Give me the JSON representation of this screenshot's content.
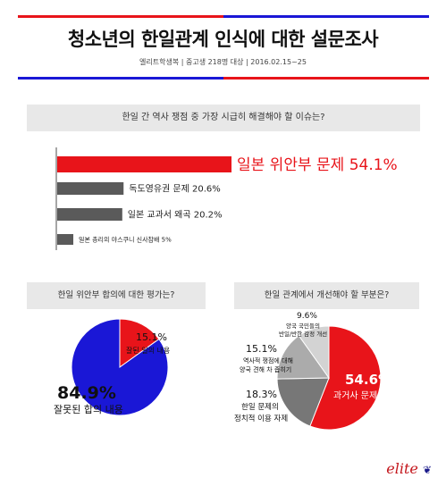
{
  "header": {
    "title": "청소년의 한일관계 인식에 대한 설문조사",
    "subtitle": "엘리트학생복 | 중고생 218명 대상 | 2016.02.15~25"
  },
  "colors": {
    "red": "#e8141a",
    "blue": "#1a17d6",
    "gray": "#5a5a5a",
    "lightgray": "#d8d8d8",
    "qbg": "#e8e8e8"
  },
  "chart_data": [
    {
      "type": "bar",
      "title": "한일 간 역사 쟁점 중 가장 시급히 해결해야 할 이슈는?",
      "categories": [
        "일본 위안부 문제",
        "독도영유권 문제",
        "일본 교과서 왜곡",
        "일본 총리의 야스쿠니 신사참배"
      ],
      "values": [
        54.1,
        20.6,
        20.2,
        5
      ],
      "labels": [
        "일본 위안부 문제 54.1%",
        "독도영유권 문제 20.6%",
        "일본 교과서 왜곡 20.2%",
        "일본 총리의 야스쿠니 신사참배 5%"
      ],
      "highlight_index": 0
    },
    {
      "type": "pie",
      "title": "한일 위안부 합의에 대한 평가는?",
      "slices": [
        {
          "label": "잘된 일의 내용",
          "value": 15.1,
          "value_text": "15.1%",
          "color": "#e8141a"
        },
        {
          "label": "잘못된 합의 내용",
          "value": 84.9,
          "value_text": "84.9%",
          "color": "#1a17d6"
        }
      ]
    },
    {
      "type": "pie",
      "title": "한일 관계에서 개선해야 할 부분은?",
      "slices": [
        {
          "label": "과거사 문제 청산",
          "value": 54.6,
          "value_text": "54.6%",
          "color": "#e8141a"
        },
        {
          "label": "한일 문제의 정치적 이용 자제",
          "value": 18.3,
          "value_text": "18.3%",
          "color": "#777777"
        },
        {
          "label": "역사적 쟁점에 대해 양국 견해 차 좁히기",
          "value": 15.1,
          "value_text": "15.1%",
          "color": "#ababab"
        },
        {
          "label": "양국 국민들의 반일/반한 감정 개선",
          "value": 9.6,
          "value_text": "9.6%",
          "color": "#d3d3d3"
        }
      ]
    }
  ],
  "brand": {
    "logo": "elite"
  }
}
